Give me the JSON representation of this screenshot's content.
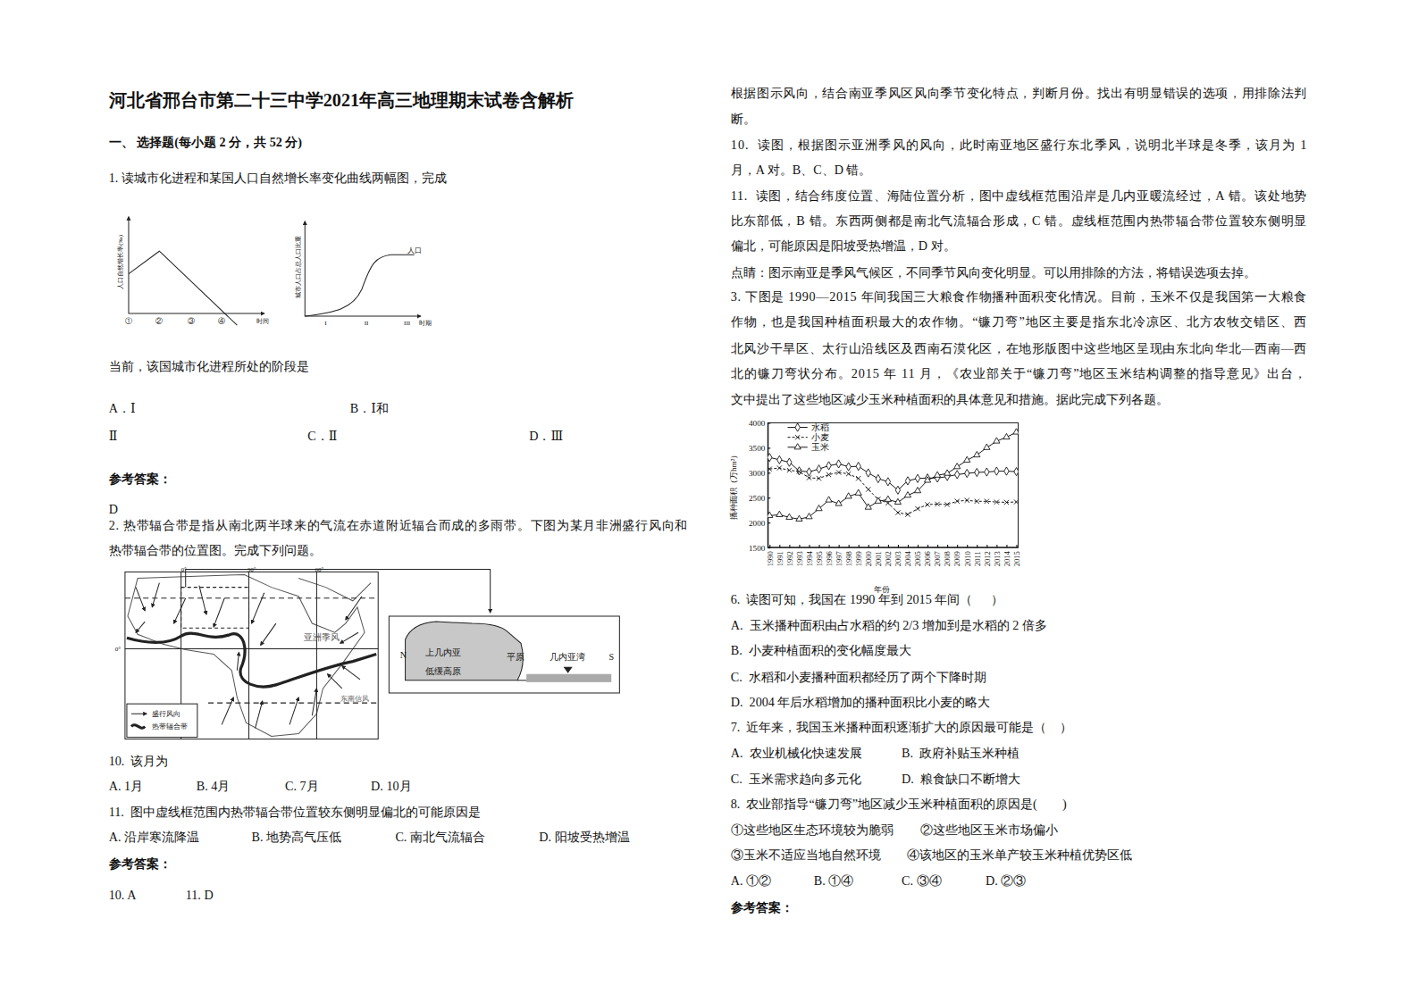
{
  "header": {
    "title": "河北省邢台市第二十三中学2021年高三地理期末试卷含解析",
    "section": "一、 选择题(每小题 2 分，共 52 分)"
  },
  "q1": {
    "stem": "1. 读城市化进程和某国人口自然增长率变化曲线两幅图，完成",
    "question": "当前，该国城市化进程所处的阶段是",
    "options": [
      "A．Ⅰ",
      "B．Ⅰ和",
      "Ⅱ",
      "C．Ⅱ",
      "D．Ⅲ"
    ],
    "answer_heading": "参考答案：",
    "answer": "D"
  },
  "fig1": {
    "left_ylabel": "人口自然增长率(‰)",
    "left_xticks": [
      "①",
      "②",
      "③",
      "④"
    ],
    "left_xlabel": "时间",
    "right_ylabel": "城市人口占总人口比重",
    "right_xticks": [
      "I",
      "II",
      "III"
    ],
    "right_xlabel": "时期",
    "curve_label": "人口"
  },
  "q2": {
    "stem": [
      "2. 热带辐合带是指从南北两半球来的气流在赤道附近辐合而成的多雨带。下图为某月非洲盛行风向和",
      "热带辐合带的位置图。完成下列问题。"
    ],
    "q10": {
      "stem": "10.  该月为",
      "options": [
        "A. 1月",
        "B. 4月",
        "C. 7月",
        "D. 10月"
      ]
    },
    "q11": {
      "stem": "11.  图中虚线框范围内热带辐合带位置较东侧明显偏北的可能原因是",
      "options": [
        "A. 沿岸寒流降温",
        "B. 地势高气压低",
        "C. 南北气流辐合",
        "D. 阳坡受热增温"
      ]
    },
    "answer_heading": "参考答案：",
    "answer": [
      "10. A",
      "11. D"
    ]
  },
  "fig2": {
    "lon_labels": [
      "0°",
      "30°",
      "60°"
    ],
    "lat_label": "0°",
    "monsoon_label": "亚洲季风",
    "trade_label": "东南信风",
    "legend": [
      "盛行风向",
      "热带辐合带"
    ],
    "section": {
      "north": "N",
      "plateau": [
        "上几内亚",
        "低缓高原"
      ],
      "plain": "平原",
      "gulf": "几内亚湾",
      "south": "S"
    }
  },
  "analysis": {
    "intro": [
      "根据图示风向，结合南亚季风区风向季节变化特点，判断月份。找出有明显错误的选项，用排除法判",
      "断。"
    ],
    "a10": [
      "10.  读图，根据图示亚洲季风的风向，此时南亚地区盛行东北季风，说明北半球是冬季，该月为 1",
      "月，A 对。B、C、D 错。"
    ],
    "a11": [
      "11.  读图，结合纬度位置、海陆位置分析，图中虚线框范围沿岸是几内亚暖流经过，A 错。该处地势",
      "比东部低，B 错。东西两侧都是南北气流辐合形成，C 错。虚线框范围内热带辐合带位置较东侧明显",
      "偏北，可能原因是阳坡受热增温，D 对。"
    ],
    "note": "点睛：图示南亚是季风气候区，不同季节风向变化明显。可以用排除的方法，将错误选项去掉。"
  },
  "q3": {
    "stem": [
      "3. 下图是 1990—2015 年间我国三大粮食作物播种面积变化情况。目前，玉米不仅是我国第一大粮食",
      "作物，也是我国种植面积最大的农作物。“镰刀弯”地区主要是指东北冷凉区、北方农牧交错区、西",
      "北风沙干旱区、太行山沿线区及西南石漠化区，在地形版图中这些地区呈现由东北向华北—西南—西",
      "北的镰刀弯状分布。2015 年 11 月，《农业部关于“镰刀弯”地区玉米结构调整的指导意见》出台，",
      "文中提出了这些地区减少玉米种植面积的具体意见和措施。据此完成下列各题。"
    ],
    "q6": {
      "stem": "6.  读图可知，我国在 1990 年到 2015 年间（      ）",
      "options": [
        "A.  玉米播种面积由占水稻的约 2/3 增加到是水稻的 2 倍多",
        "B.  小麦种植面积的变化幅度最大",
        "C.  水稻和小麦播种面积都经历了两个下降时期",
        "D.  2004 年后水稻增加的播种面积比小麦的略大"
      ]
    },
    "q7": {
      "stem": "7.  近年来，我国玉米播种面积逐渐扩大的原因最可能是（    ）",
      "options": [
        "A.  农业机械化快速发展",
        "B.  政府补贴玉米种植",
        "C.  玉米需求趋向多元化",
        "D.  粮食缺口不断增大"
      ]
    },
    "q8": {
      "stem": "8.  农业部指导“镰刀弯”地区减少玉米种植面积的原因是(        )",
      "items": [
        "①这些地区生态环境较为脆弱",
        "②这些地区玉米市场偏小",
        "③玉米不适应当地自然环境",
        "④该地区的玉米单产较玉米种植优势区低"
      ],
      "options": [
        "A. ①②",
        "B. ①④",
        "C. ③④",
        "D. ②③"
      ]
    },
    "answer_heading": "参考答案："
  },
  "chart_data": {
    "type": "line",
    "x_label": "年份",
    "y_label": "播种面积（万hm²）",
    "x": [
      1990,
      1991,
      1992,
      1993,
      1994,
      1995,
      1996,
      1997,
      1998,
      1999,
      2000,
      2001,
      2002,
      2003,
      2004,
      2005,
      2006,
      2007,
      2008,
      2009,
      2010,
      2011,
      2012,
      2013,
      2014,
      2015
    ],
    "xlim": [
      1990,
      2015
    ],
    "xticks": [
      1990,
      1991,
      1992,
      1993,
      1994,
      1995,
      1996,
      1997,
      1998,
      1999,
      2000,
      2001,
      2002,
      2003,
      2004,
      2005,
      2006,
      2007,
      2008,
      2009,
      2010,
      2011,
      2012,
      2013,
      2014,
      2015
    ],
    "ylim": [
      1500,
      4000
    ],
    "yticks": [
      1500,
      2000,
      2500,
      3000,
      3500,
      4000
    ],
    "grid": false,
    "legend": "upper left",
    "series": [
      {
        "name": "水稻",
        "color": "#000000",
        "marker": "diamond",
        "line_style": "solid",
        "values": [
          3306,
          3259,
          3209,
          3036,
          3017,
          3074,
          3141,
          3177,
          3121,
          3128,
          2996,
          2881,
          2820,
          2651,
          2838,
          2885,
          2894,
          2892,
          2924,
          2963,
          2987,
          3006,
          3014,
          3031,
          3031,
          3022
        ]
      },
      {
        "name": "小麦",
        "color": "#000000",
        "marker": "x",
        "line_style": "dashed",
        "values": [
          3075,
          3095,
          3050,
          3024,
          2898,
          2886,
          2961,
          3006,
          2977,
          2886,
          2665,
          2466,
          2391,
          2200,
          2163,
          2279,
          2361,
          2372,
          2362,
          2429,
          2446,
          2427,
          2427,
          2412,
          2407,
          2414
        ]
      },
      {
        "name": "玉米",
        "color": "#000000",
        "marker": "triangle",
        "line_style": "solid",
        "values": [
          2140,
          2157,
          2104,
          2069,
          2115,
          2278,
          2450,
          2378,
          2524,
          2590,
          2306,
          2428,
          2463,
          2407,
          2545,
          2636,
          2846,
          2948,
          2986,
          3118,
          3250,
          3354,
          3503,
          3632,
          3712,
          3812
        ]
      }
    ]
  }
}
